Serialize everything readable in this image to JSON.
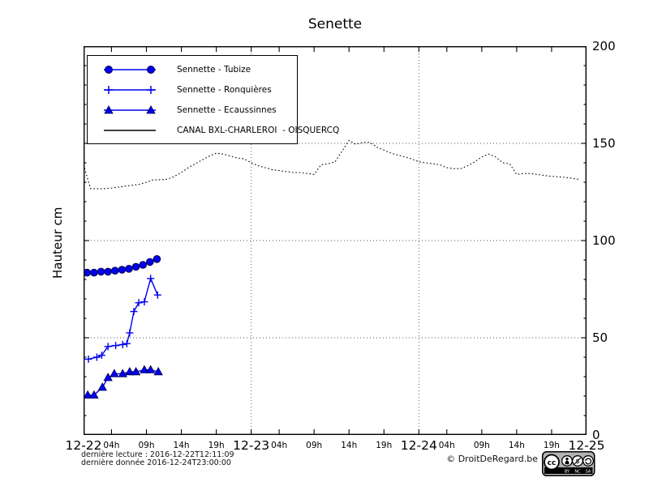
{
  "chart_data": {
    "type": "line",
    "title": "Senette",
    "ylabel": "Hauteur cm",
    "ylim": [
      0,
      200
    ],
    "yticks": [
      0,
      50,
      100,
      150,
      200
    ],
    "grid_y": [
      50,
      100,
      150
    ],
    "grid_x_hours": [
      24,
      48
    ],
    "hours_total": 72,
    "grid": "dotted",
    "legend_position": "upper-left",
    "x_day_labels": [
      {
        "label": "12-22",
        "hour": 0
      },
      {
        "label": "12-23",
        "hour": 24
      },
      {
        "label": "12-24",
        "hour": 48
      },
      {
        "label": "12-25",
        "hour": 72
      }
    ],
    "x_hour_label_offsets": [
      4,
      9,
      14,
      19
    ],
    "x_hour_label_texts": [
      "04h",
      "09h",
      "14h",
      "19h"
    ],
    "series": [
      {
        "name": "Sennette - Tubize",
        "marker": "circle",
        "color": "#0000ee",
        "x": [
          0.5,
          1.5,
          2.5,
          3.5,
          4.5,
          5.5,
          6.5,
          7.5,
          8.5,
          9.5,
          10.5
        ],
        "y": [
          83.5,
          83.5,
          84,
          84,
          84.5,
          85,
          85.5,
          86.5,
          87.5,
          89,
          90.5
        ]
      },
      {
        "name": "Sennette - Ronquières",
        "marker": "plus",
        "color": "#0000ee",
        "x": [
          0.7,
          1.9,
          2.6,
          3.5,
          4.6,
          5.6,
          6.2,
          6.6,
          7.2,
          7.9,
          8.7,
          9.6,
          10.6
        ],
        "y": [
          39,
          40,
          41,
          45.5,
          46,
          46.5,
          47,
          52.5,
          63.5,
          68,
          68.5,
          80.5,
          72
        ]
      },
      {
        "name": "Sennette - Ecaussinnes",
        "marker": "triangle",
        "color": "#0000ee",
        "x": [
          0.6,
          1.5,
          2.7,
          3.5,
          4.4,
          5.6,
          6.6,
          7.5,
          8.7,
          9.6,
          10.7
        ],
        "y": [
          20.5,
          20.5,
          24.5,
          29.5,
          31.5,
          31.5,
          32.5,
          32.5,
          33.5,
          33.5,
          32.5
        ]
      },
      {
        "name": "CANAL BXL-CHARLEROI  - OISQUERCQ",
        "marker": "none",
        "linestyle": "dotted",
        "color": "#000000",
        "x_start": 0,
        "x_step": 1,
        "y": [
          139,
          126.7,
          126.7,
          126.7,
          127,
          127.5,
          128,
          128.5,
          129,
          130,
          131.3,
          131.3,
          131.5,
          133,
          135,
          137.5,
          139.5,
          141.5,
          143.5,
          145,
          144.5,
          143.5,
          142.5,
          142,
          140,
          138.5,
          137.5,
          136.5,
          136,
          135.5,
          135,
          135,
          134.5,
          134,
          139,
          139.5,
          140.5,
          146,
          151.5,
          149.5,
          150.5,
          150.5,
          148,
          146.5,
          145,
          144,
          143,
          142,
          140.5,
          140,
          139.5,
          139,
          137.5,
          137,
          137,
          138.5,
          140.5,
          143,
          144.5,
          143,
          140,
          139.5,
          134,
          134.5,
          134.5,
          134,
          133.5,
          133,
          132.8,
          132.5,
          132,
          131.4
        ]
      }
    ]
  },
  "footer": {
    "line1": "dernière lecture : 2016-12-22T12:11:09",
    "line2": "dernière donnée  2016-12-24T23:00:00",
    "copyright": "© DroitDeRegard.be"
  },
  "cc_badge": {
    "cc": "cc",
    "labels": [
      "BY",
      "NC",
      "SA"
    ]
  }
}
